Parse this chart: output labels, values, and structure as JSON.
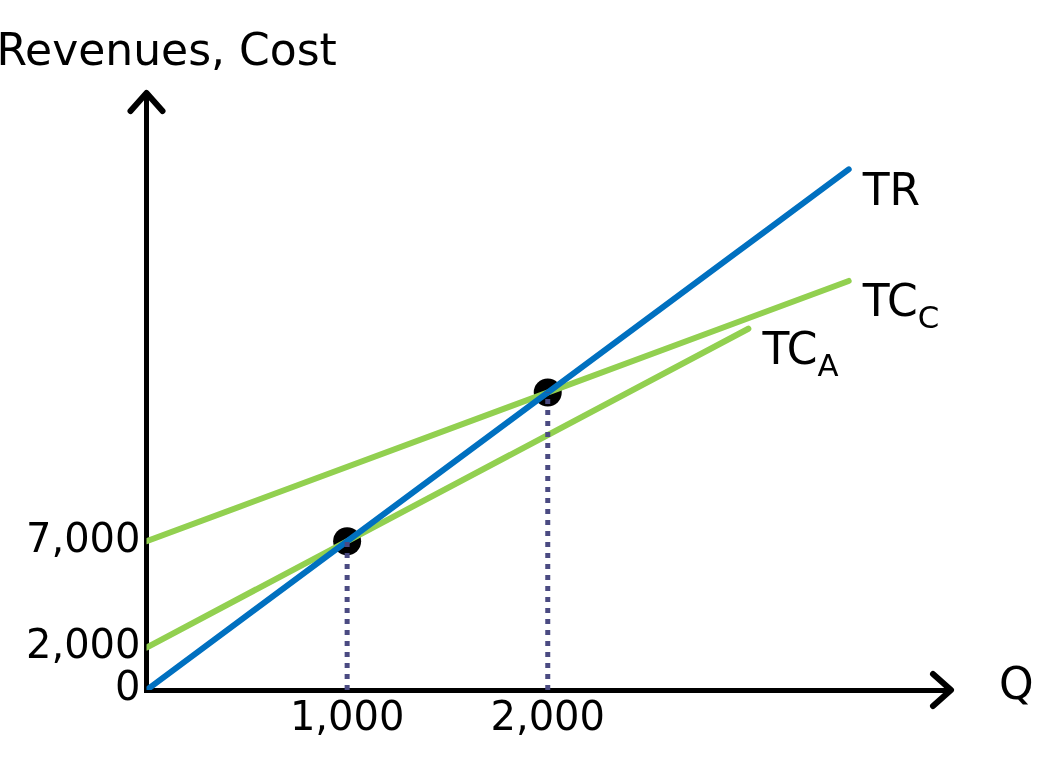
{
  "chart_data": {
    "type": "line",
    "xlabel": "Q",
    "ylabel": "Revenues, Cost",
    "xlim": [
      0,
      4000
    ],
    "ylim": [
      0,
      28000
    ],
    "xticks": [
      {
        "value": 1000,
        "label": "1,000"
      },
      {
        "value": 2000,
        "label": "2,000"
      }
    ],
    "yticks": [
      0,
      {
        "value": 2000,
        "label": "2,000"
      },
      {
        "value": 7000,
        "label": "7,000"
      }
    ],
    "grid": false,
    "legend": false,
    "marker": "none",
    "line_style": "solid",
    "series": [
      {
        "x": [
          1000,
          1000
        ],
        "values": [
          0,
          7000
        ],
        "color": "#4b4b82",
        "line_style": "dotted"
      },
      {
        "x": [
          2000,
          2000
        ],
        "values": [
          0,
          14000
        ],
        "color": "#4b4b82",
        "line_style": "dotted"
      },
      {
        "name": "TR",
        "x": [
          0,
          3500
        ],
        "values": [
          0,
          24500
        ],
        "color": "#0070c0"
      },
      {
        "name": "TC$_{C}$",
        "x": [
          0,
          3500
        ],
        "values": [
          7000,
          19250
        ],
        "color": "#92d050"
      },
      {
        "name": "TC$_{A}$",
        "x": [
          0,
          3000
        ],
        "values": [
          2000,
          17000
        ],
        "color": "#92d050"
      },
      {
        "type": "scatter",
        "x": [
          1000,
          2000
        ],
        "values": [
          7000,
          14000
        ],
        "color": "#000000",
        "marker": "circle"
      }
    ]
  }
}
